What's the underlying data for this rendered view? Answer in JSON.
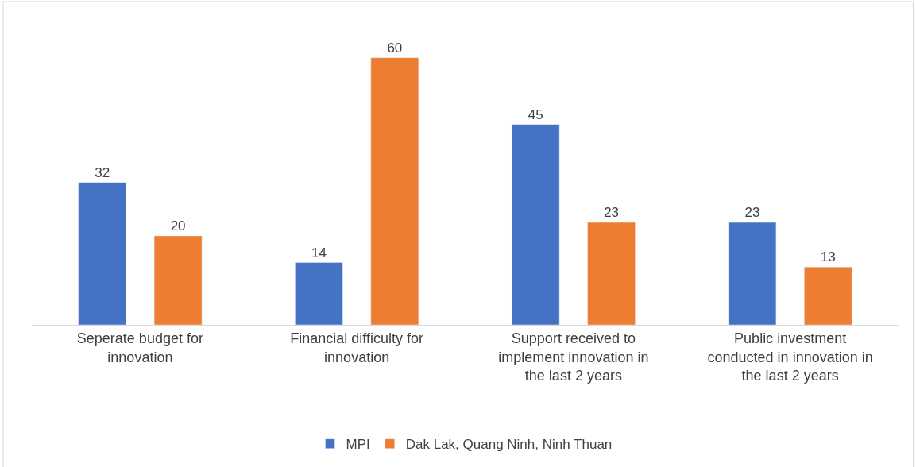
{
  "chart_data": {
    "type": "bar",
    "categories": [
      "Seperate budget for innovation",
      "Financial difficulty for innovation",
      "Support received to implement innovation in the last 2 years",
      "Public investment conducted in innovation in the last 2 years"
    ],
    "series": [
      {
        "name": "MPI",
        "color": "#4472c4",
        "values": [
          32,
          14,
          45,
          23
        ]
      },
      {
        "name": "Dak Lak, Quang Ninh, Ninh Thuan",
        "color": "#ed7d31",
        "values": [
          20,
          60,
          23,
          13
        ]
      }
    ],
    "data_labels": true,
    "legend": "bottom",
    "grid": false,
    "tick_labels": "x"
  }
}
